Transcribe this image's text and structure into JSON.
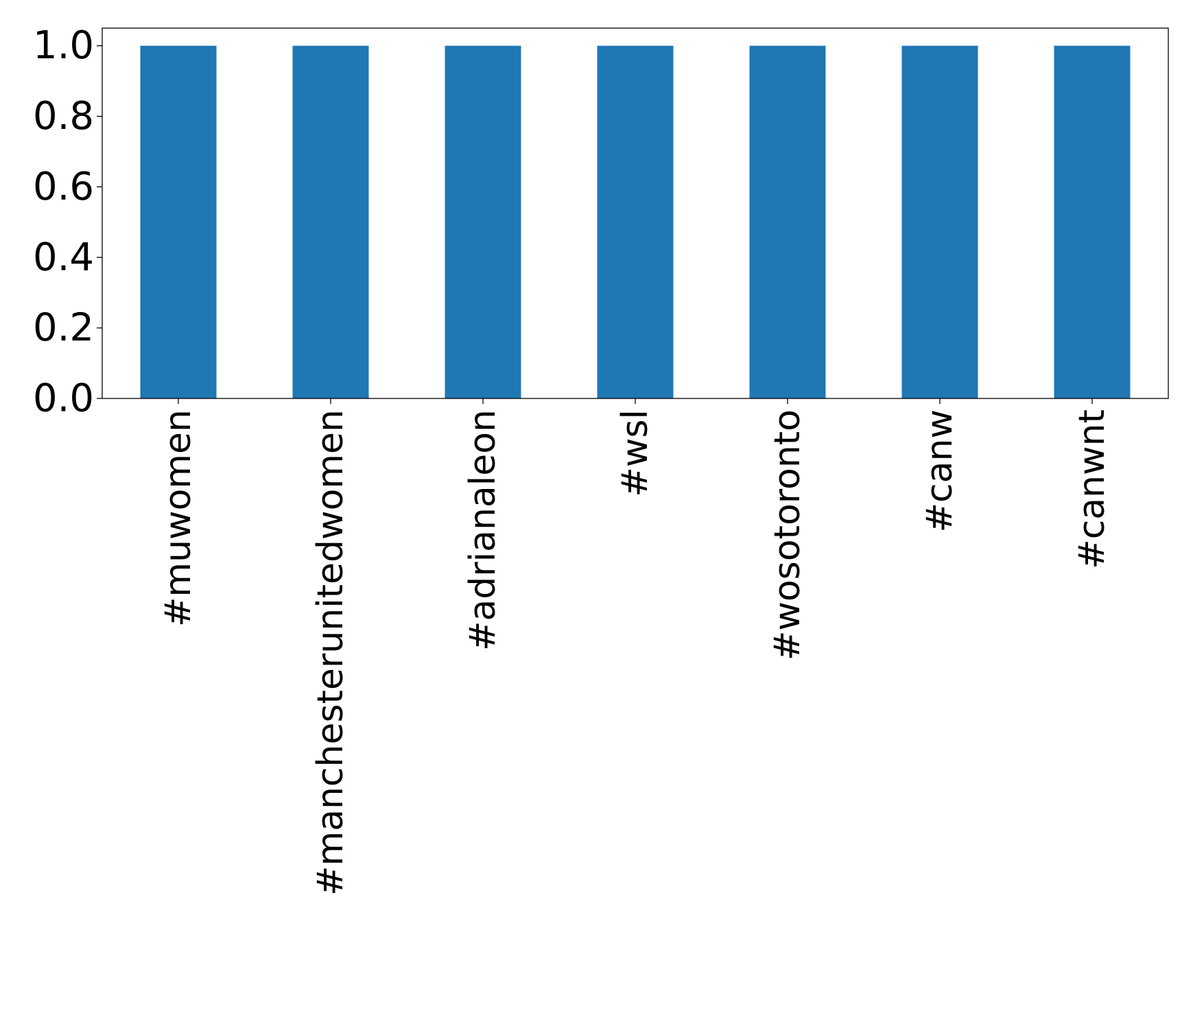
{
  "chart_data": {
    "type": "bar",
    "title": "",
    "xlabel": "",
    "ylabel": "",
    "categories": [
      "#muwomen",
      "#manchesterunitedwomen",
      "#adrianaleon",
      "#wsl",
      "#wosotoronto",
      "#canw",
      "#canwnt"
    ],
    "values": [
      1,
      1,
      1,
      1,
      1,
      1,
      1
    ],
    "ylim": [
      0,
      1.05
    ],
    "yticks": [
      "0.0",
      "0.2",
      "0.4",
      "0.6",
      "0.8",
      "1.0"
    ],
    "grid": false,
    "bar_color": "#1f77b4"
  }
}
